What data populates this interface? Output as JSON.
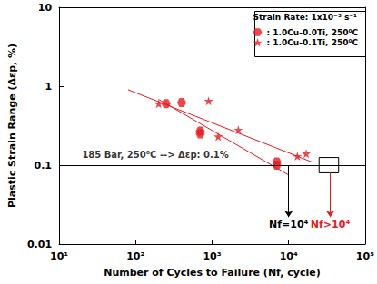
{
  "chart_data": {
    "type": "scatter",
    "log": true,
    "grid": false,
    "legend": "upper right",
    "legend_title": "Strain Rate: 1x10⁻³ s⁻¹",
    "x_label": "Number of Cycles to Failure (Nf, cycle)",
    "y_label": "Plastic Strain Range (Δεp, %)",
    "xlim": [
      10,
      100000
    ],
    "xticks": [
      {
        "value": 10,
        "label": "10¹"
      },
      {
        "value": 100,
        "label": "10²"
      },
      {
        "value": 1000,
        "label": "10³"
      },
      {
        "value": 10000,
        "label": "10⁴"
      },
      {
        "value": 100000,
        "label": "10⁵"
      }
    ],
    "ylim": [
      0.01,
      10
    ],
    "yticks": [
      0.01,
      0.1,
      1,
      10
    ],
    "series": [
      {
        "name": ": 1.0Cu-0.0Ti, 250⁰C",
        "color": "#e8191f",
        "marker": "hexagon",
        "x": [
          250,
          400,
          700,
          700,
          7000,
          7000
        ],
        "values": [
          0.6,
          0.62,
          0.25,
          0.27,
          0.11,
          0.1
        ],
        "fit": {
          "x": [
            200,
            10000
          ],
          "values": [
            0.68,
            0.075
          ]
        }
      },
      {
        "name": ": 1.0Cu-0.1Ti, 250⁰C",
        "color": "#e8191f",
        "marker": "star",
        "x": [
          200,
          900,
          1200,
          2200,
          13000,
          17000
        ],
        "values": [
          0.6,
          0.65,
          0.23,
          0.28,
          0.13,
          0.14
        ],
        "fit": {
          "x": [
            80,
            20000
          ],
          "values": [
            0.9,
            0.11
          ]
        }
      }
    ],
    "reference_line": {
      "y": 0.1,
      "color": "#000000"
    },
    "annotations": [
      {
        "text": "185 Bar, 250⁰C --> Δεp: 0.1%",
        "x": 20,
        "y": 0.135,
        "color": "#000000"
      }
    ],
    "box": {
      "x": [
        25000,
        45000
      ],
      "y": [
        0.08,
        0.125
      ],
      "color": "#000000"
    },
    "arrows": [
      {
        "text": "Nf=10⁴",
        "x": 10000,
        "from": 0.1,
        "to": 0.022,
        "color": "#000000"
      },
      {
        "text": "Nf>10⁴",
        "x": 35000,
        "from": 0.08,
        "to": 0.022,
        "color": "#e8191f"
      }
    ]
  }
}
